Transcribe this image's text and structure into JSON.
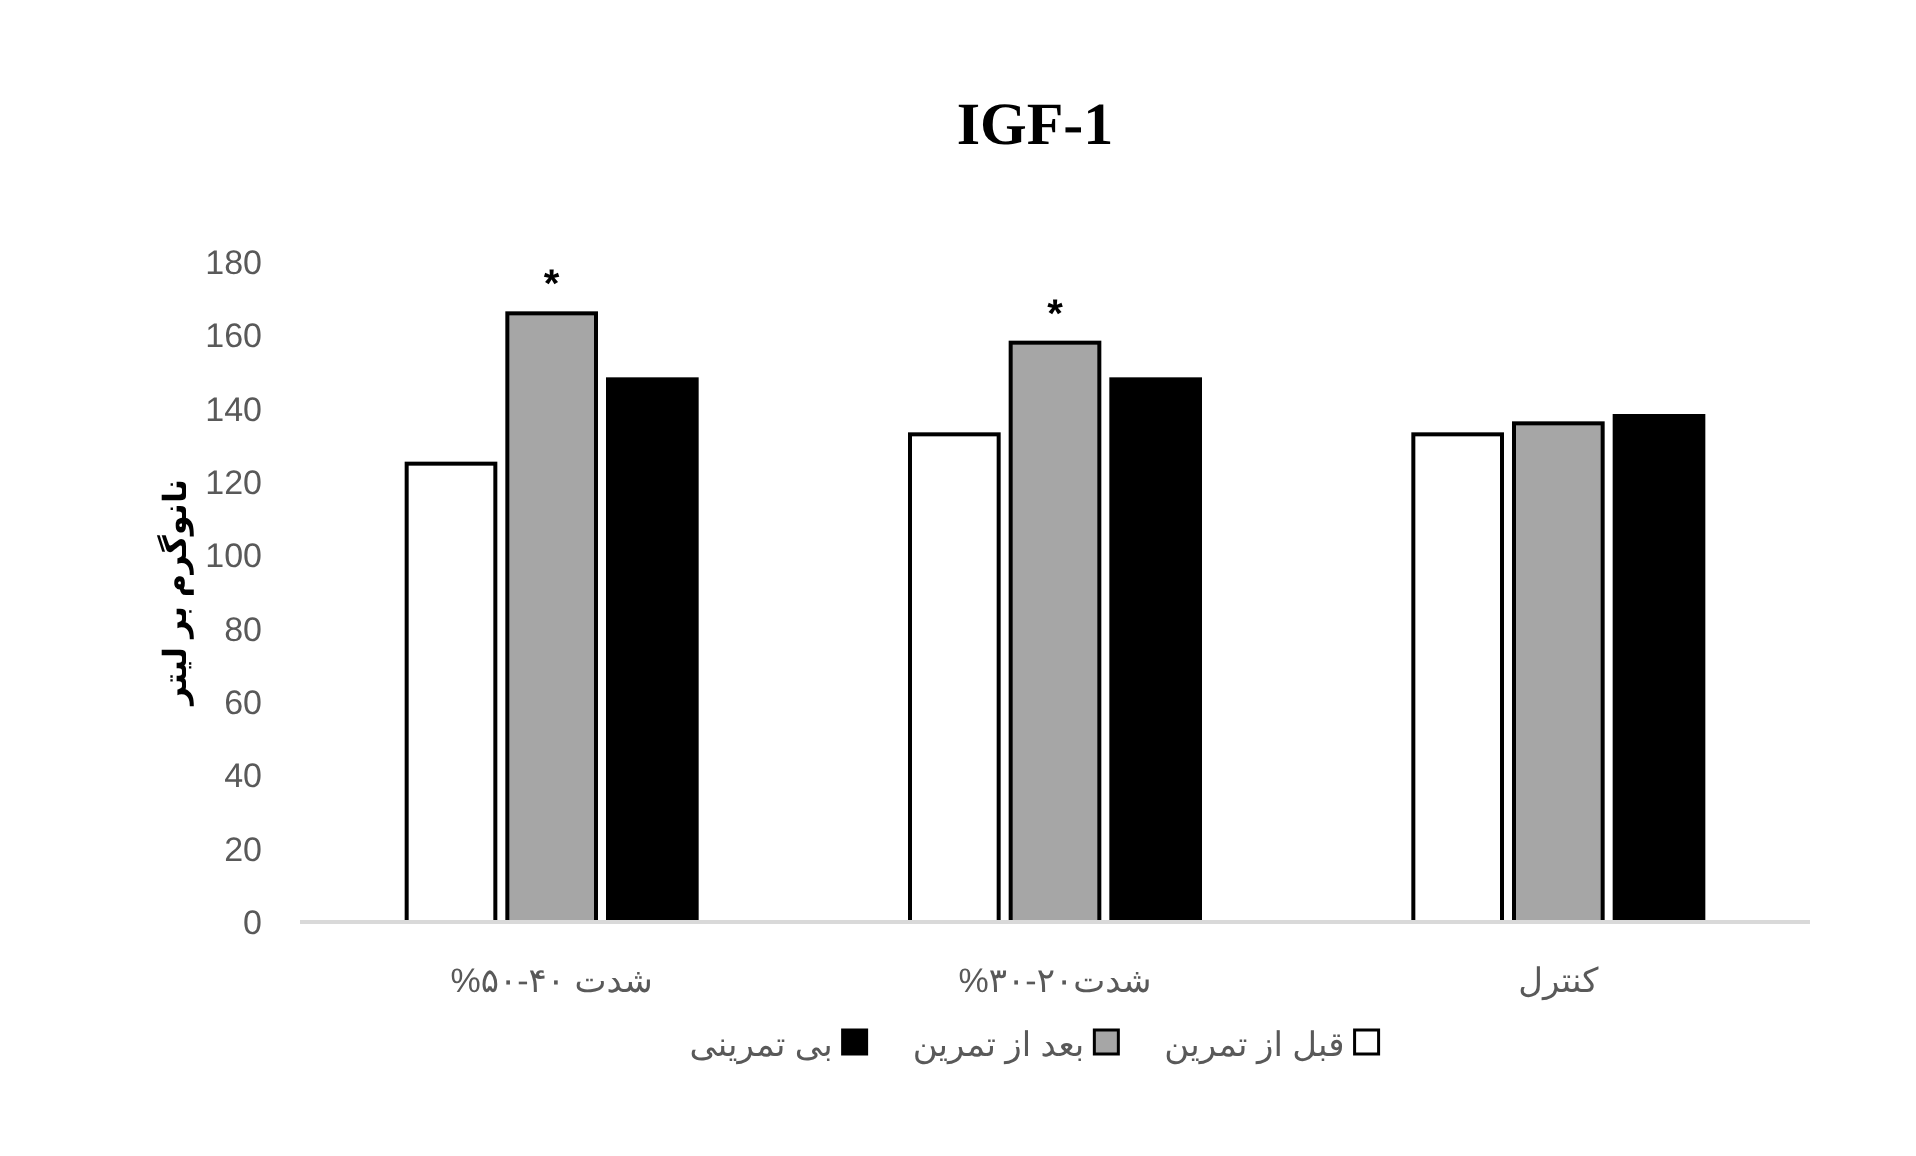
{
  "chart_data": {
    "type": "bar",
    "title": "IGF-1",
    "ylabel": "نانوگرم بر لیتر",
    "categories": [
      "شدت ۴۰-۵۰%",
      "شدت۲۰-۳۰%",
      "کنترل"
    ],
    "series": [
      {
        "name": "قبل از تمرین",
        "color": "#ffffff",
        "values": [
          125,
          133,
          133
        ]
      },
      {
        "name": "بعد از تمرین",
        "color": "#a6a6a6",
        "values": [
          166,
          158,
          136
        ]
      },
      {
        "name": "بی تمرینی",
        "color": "#000000",
        "values": [
          148,
          148,
          138
        ]
      }
    ],
    "ylim": [
      0,
      180
    ],
    "yticks": [
      0,
      20,
      40,
      60,
      80,
      100,
      120,
      140,
      160,
      180
    ],
    "annotations": [
      {
        "text": "*",
        "x": "شدت ۴۰-۵۰%",
        "y": 166
      },
      {
        "text": "*",
        "x": "شدت۲۰-۳۰%",
        "y": 158
      }
    ],
    "grid": false,
    "legend": "bottom"
  }
}
